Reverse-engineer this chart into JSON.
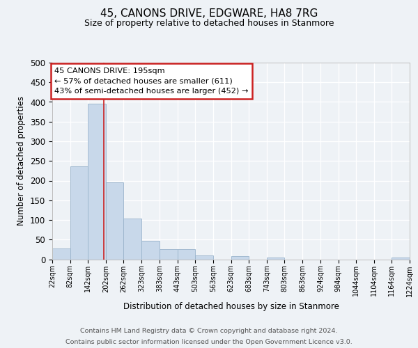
{
  "title": "45, CANONS DRIVE, EDGWARE, HA8 7RG",
  "subtitle": "Size of property relative to detached houses in Stanmore",
  "xlabel": "Distribution of detached houses by size in Stanmore",
  "ylabel": "Number of detached properties",
  "bin_edges": [
    22,
    82,
    142,
    202,
    262,
    323,
    383,
    443,
    503,
    563,
    623,
    683,
    743,
    803,
    863,
    924,
    984,
    1044,
    1104,
    1164,
    1224
  ],
  "bin_labels": [
    "22sqm",
    "82sqm",
    "142sqm",
    "202sqm",
    "262sqm",
    "323sqm",
    "383sqm",
    "443sqm",
    "503sqm",
    "563sqm",
    "623sqm",
    "683sqm",
    "743sqm",
    "803sqm",
    "863sqm",
    "924sqm",
    "984sqm",
    "1044sqm",
    "1104sqm",
    "1164sqm",
    "1224sqm"
  ],
  "counts": [
    28,
    236,
    395,
    196,
    104,
    47,
    26,
    26,
    10,
    0,
    8,
    0,
    5,
    0,
    0,
    0,
    0,
    0,
    0,
    4
  ],
  "bar_color": "#c8d8ea",
  "bar_edge_color": "#9ab4cc",
  "property_line_x": 195,
  "property_line_color": "#cc2222",
  "annotation_text": "45 CANONS DRIVE: 195sqm\n← 57% of detached houses are smaller (611)\n43% of semi-detached houses are larger (452) →",
  "annotation_box_facecolor": "#ffffff",
  "annotation_box_edgecolor": "#cc2222",
  "ylim": [
    0,
    500
  ],
  "yticks": [
    0,
    50,
    100,
    150,
    200,
    250,
    300,
    350,
    400,
    450,
    500
  ],
  "bg_color": "#eef2f6",
  "grid_color": "#ffffff",
  "footer_line1": "Contains HM Land Registry data © Crown copyright and database right 2024.",
  "footer_line2": "Contains public sector information licensed under the Open Government Licence v3.0."
}
